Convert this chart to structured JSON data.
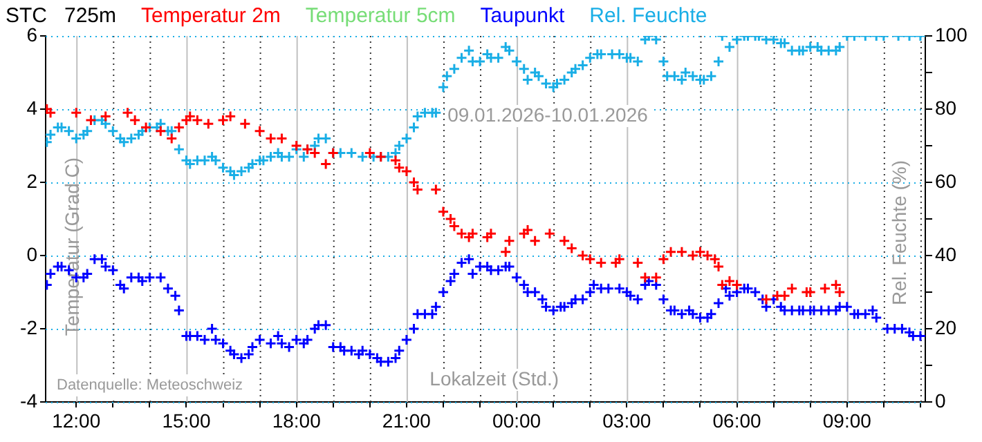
{
  "chart_data": {
    "type": "scatter",
    "title": "STC   725m",
    "xlabel": "Lokalzeit (Std.)",
    "ylabel": "Temperatur (Grad C)",
    "y2label": "Rel. Feuchte (%)",
    "annotations": [
      "09.01.2026-10.01.2026",
      "Datenquelle: Meteoschweiz"
    ],
    "legend": "top",
    "grid": true,
    "marker": "cross",
    "xlim": [
      "2026-01-09T11:10",
      "2026-01-10T11:08"
    ],
    "xticks": [
      {
        "value": "2026-01-09T12:00",
        "label": "12:00"
      },
      {
        "value": "2026-01-09T13:00",
        "label": null
      },
      {
        "value": "2026-01-09T14:00",
        "label": null
      },
      {
        "value": "2026-01-09T15:00",
        "label": "15:00"
      },
      {
        "value": "2026-01-09T16:00",
        "label": null
      },
      {
        "value": "2026-01-09T17:00",
        "label": null
      },
      {
        "value": "2026-01-09T18:00",
        "label": "18:00"
      },
      {
        "value": "2026-01-09T19:00",
        "label": null
      },
      {
        "value": "2026-01-09T20:00",
        "label": null
      },
      {
        "value": "2026-01-09T21:00",
        "label": "21:00"
      },
      {
        "value": "2026-01-09T22:00",
        "label": null
      },
      {
        "value": "2026-01-09T23:00",
        "label": null
      },
      {
        "value": "2026-01-10T00:00",
        "label": "00:00"
      },
      {
        "value": "2026-01-10T01:00",
        "label": null
      },
      {
        "value": "2026-01-10T02:00",
        "label": null
      },
      {
        "value": "2026-01-10T03:00",
        "label": "03:00"
      },
      {
        "value": "2026-01-10T04:00",
        "label": null
      },
      {
        "value": "2026-01-10T05:00",
        "label": null
      },
      {
        "value": "2026-01-10T06:00",
        "label": "06:00"
      },
      {
        "value": "2026-01-10T07:00",
        "label": null
      },
      {
        "value": "2026-01-10T08:00",
        "label": null
      },
      {
        "value": "2026-01-10T09:00",
        "label": "09:00"
      },
      {
        "value": "2026-01-10T10:00",
        "label": null
      },
      {
        "value": "2026-01-10T11:00",
        "label": null
      }
    ],
    "ylim": [
      -4,
      6
    ],
    "yticks": [
      -4,
      -2,
      0,
      2,
      4,
      6
    ],
    "y2lim": [
      0,
      100
    ],
    "y2ticks": [
      0,
      {
        "value": 10,
        "label": null
      },
      20,
      {
        "value": 30,
        "label": null
      },
      40,
      {
        "value": 50,
        "label": null
      },
      60,
      {
        "value": 70,
        "label": null
      },
      80,
      {
        "value": 90,
        "label": null
      },
      100
    ],
    "series": [
      {
        "name": "Temperatur 2m",
        "color": "#ff0000",
        "x": [
          "2026-01-09T11:12",
          "2026-01-09T11:18",
          "2026-01-09T12:00",
          "2026-01-09T12:24",
          "2026-01-09T12:48",
          "2026-01-09T13:24",
          "2026-01-09T13:36",
          "2026-01-09T13:54",
          "2026-01-09T14:18",
          "2026-01-09T14:36",
          "2026-01-09T14:48",
          "2026-01-09T15:00",
          "2026-01-09T15:06",
          "2026-01-09T15:18",
          "2026-01-09T15:36",
          "2026-01-09T16:00",
          "2026-01-09T16:12",
          "2026-01-09T16:36",
          "2026-01-09T17:00",
          "2026-01-09T17:18",
          "2026-01-09T17:36",
          "2026-01-09T18:00",
          "2026-01-09T18:18",
          "2026-01-09T18:30",
          "2026-01-09T18:48",
          "2026-01-09T19:00",
          "2026-01-09T20:00",
          "2026-01-09T20:18",
          "2026-01-09T20:42",
          "2026-01-09T20:48",
          "2026-01-09T21:00",
          "2026-01-09T21:12",
          "2026-01-09T21:18",
          "2026-01-09T21:48",
          "2026-01-09T22:00",
          "2026-01-09T22:12",
          "2026-01-09T22:18",
          "2026-01-09T22:30",
          "2026-01-09T22:42",
          "2026-01-09T22:48",
          "2026-01-09T23:12",
          "2026-01-09T23:18",
          "2026-01-09T23:42",
          "2026-01-09T23:48",
          "2026-01-10T00:12",
          "2026-01-10T00:18",
          "2026-01-10T00:30",
          "2026-01-10T00:54",
          "2026-01-10T01:18",
          "2026-01-10T01:30",
          "2026-01-10T01:48",
          "2026-01-10T02:00",
          "2026-01-10T02:18",
          "2026-01-10T02:42",
          "2026-01-10T02:48",
          "2026-01-10T03:18",
          "2026-01-10T03:30",
          "2026-01-10T03:48",
          "2026-01-10T04:00",
          "2026-01-10T04:12",
          "2026-01-10T04:30",
          "2026-01-10T04:48",
          "2026-01-10T05:00",
          "2026-01-10T05:12",
          "2026-01-10T05:24",
          "2026-01-10T05:30",
          "2026-01-10T05:36",
          "2026-01-10T05:48",
          "2026-01-10T06:00",
          "2026-01-10T06:48",
          "2026-01-10T07:06",
          "2026-01-10T07:18",
          "2026-01-10T07:30",
          "2026-01-10T07:54",
          "2026-01-10T08:00",
          "2026-01-10T08:24",
          "2026-01-10T08:42",
          "2026-01-10T08:48"
        ],
        "values": [
          4.0,
          3.9,
          3.9,
          3.7,
          3.8,
          3.9,
          3.7,
          3.5,
          3.4,
          3.2,
          3.5,
          3.7,
          3.8,
          3.7,
          3.6,
          3.7,
          3.8,
          3.6,
          3.4,
          3.2,
          3.2,
          3.0,
          2.9,
          2.8,
          2.5,
          2.8,
          2.8,
          2.7,
          2.6,
          2.4,
          2.3,
          2.0,
          1.8,
          1.8,
          1.2,
          1.0,
          0.8,
          0.6,
          0.5,
          0.6,
          0.5,
          0.6,
          0.1,
          0.4,
          0.6,
          0.7,
          0.4,
          0.6,
          0.4,
          0.2,
          0.0,
          -0.1,
          -0.2,
          -0.2,
          -0.1,
          -0.2,
          -0.6,
          -0.6,
          -0.1,
          0.1,
          0.1,
          0.0,
          0.1,
          0.0,
          -0.1,
          -0.3,
          -0.8,
          -0.7,
          -0.8,
          -1.2,
          -1.1,
          -1.1,
          -0.9,
          -1.0,
          -1.0,
          -0.9,
          -0.8,
          -1.0
        ]
      },
      {
        "name": "Temperatur 5cm",
        "color": "#77dd77"
      },
      {
        "name": "Taupunkt",
        "color": "#0000ff",
        "x": [
          "2026-01-09T11:12",
          "2026-01-09T11:18",
          "2026-01-09T11:30",
          "2026-01-09T11:36",
          "2026-01-09T11:48",
          "2026-01-09T12:00",
          "2026-01-09T12:12",
          "2026-01-09T12:18",
          "2026-01-09T12:30",
          "2026-01-09T12:42",
          "2026-01-09T12:48",
          "2026-01-09T13:00",
          "2026-01-09T13:12",
          "2026-01-09T13:18",
          "2026-01-09T13:30",
          "2026-01-09T13:42",
          "2026-01-09T13:48",
          "2026-01-09T14:00",
          "2026-01-09T14:18",
          "2026-01-09T14:30",
          "2026-01-09T14:42",
          "2026-01-09T14:48",
          "2026-01-09T15:00",
          "2026-01-09T15:06",
          "2026-01-09T15:18",
          "2026-01-09T15:30",
          "2026-01-09T15:42",
          "2026-01-09T15:48",
          "2026-01-09T16:00",
          "2026-01-09T16:12",
          "2026-01-09T16:18",
          "2026-01-09T16:30",
          "2026-01-09T16:42",
          "2026-01-09T16:48",
          "2026-01-09T17:00",
          "2026-01-09T17:18",
          "2026-01-09T17:30",
          "2026-01-09T17:36",
          "2026-01-09T17:48",
          "2026-01-09T18:00",
          "2026-01-09T18:12",
          "2026-01-09T18:18",
          "2026-01-09T18:30",
          "2026-01-09T18:36",
          "2026-01-09T18:48",
          "2026-01-09T19:00",
          "2026-01-09T19:12",
          "2026-01-09T19:18",
          "2026-01-09T19:30",
          "2026-01-09T19:42",
          "2026-01-09T19:48",
          "2026-01-09T20:00",
          "2026-01-09T20:12",
          "2026-01-09T20:18",
          "2026-01-09T20:30",
          "2026-01-09T20:42",
          "2026-01-09T20:48",
          "2026-01-09T21:00",
          "2026-01-09T21:12",
          "2026-01-09T21:18",
          "2026-01-09T21:30",
          "2026-01-09T21:42",
          "2026-01-09T21:48",
          "2026-01-09T22:00",
          "2026-01-09T22:12",
          "2026-01-09T22:18",
          "2026-01-09T22:30",
          "2026-01-09T22:42",
          "2026-01-09T22:48",
          "2026-01-09T23:00",
          "2026-01-09T23:12",
          "2026-01-09T23:18",
          "2026-01-09T23:30",
          "2026-01-09T23:42",
          "2026-01-09T23:48",
          "2026-01-10T00:00",
          "2026-01-10T00:12",
          "2026-01-10T00:18",
          "2026-01-10T00:30",
          "2026-01-10T00:42",
          "2026-01-10T00:48",
          "2026-01-10T01:00",
          "2026-01-10T01:12",
          "2026-01-10T01:18",
          "2026-01-10T01:30",
          "2026-01-10T01:36",
          "2026-01-10T01:48",
          "2026-01-10T02:00",
          "2026-01-10T02:06",
          "2026-01-10T02:18",
          "2026-01-10T02:30",
          "2026-01-10T02:48",
          "2026-01-10T03:00",
          "2026-01-10T03:06",
          "2026-01-10T03:18",
          "2026-01-10T03:30",
          "2026-01-10T03:36",
          "2026-01-10T03:48",
          "2026-01-10T04:00",
          "2026-01-10T04:12",
          "2026-01-10T04:18",
          "2026-01-10T04:30",
          "2026-01-10T04:42",
          "2026-01-10T04:48",
          "2026-01-10T05:00",
          "2026-01-10T05:12",
          "2026-01-10T05:18",
          "2026-01-10T05:30",
          "2026-01-10T05:42",
          "2026-01-10T05:48",
          "2026-01-10T06:00",
          "2026-01-10T06:12",
          "2026-01-10T06:18",
          "2026-01-10T06:30",
          "2026-01-10T06:42",
          "2026-01-10T06:48",
          "2026-01-10T07:00",
          "2026-01-10T07:12",
          "2026-01-10T07:18",
          "2026-01-10T07:30",
          "2026-01-10T07:42",
          "2026-01-10T07:48",
          "2026-01-10T08:00",
          "2026-01-10T08:06",
          "2026-01-10T08:18",
          "2026-01-10T08:30",
          "2026-01-10T08:42",
          "2026-01-10T08:48",
          "2026-01-10T09:00",
          "2026-01-10T09:12",
          "2026-01-10T09:18",
          "2026-01-10T09:30",
          "2026-01-10T09:42",
          "2026-01-10T09:48",
          "2026-01-10T10:06",
          "2026-01-10T10:18",
          "2026-01-10T10:30",
          "2026-01-10T10:42",
          "2026-01-10T10:48",
          "2026-01-10T11:00"
        ],
        "values": [
          -0.8,
          -0.5,
          -0.3,
          -0.3,
          -0.4,
          -0.6,
          -0.6,
          -0.5,
          -0.1,
          -0.1,
          -0.3,
          -0.4,
          -0.8,
          -0.9,
          -0.6,
          -0.6,
          -0.7,
          -0.6,
          -0.6,
          -0.9,
          -1.1,
          -1.5,
          -2.2,
          -2.2,
          -2.2,
          -2.3,
          -2.0,
          -2.3,
          -2.4,
          -2.6,
          -2.7,
          -2.8,
          -2.7,
          -2.5,
          -2.3,
          -2.4,
          -2.2,
          -2.4,
          -2.5,
          -2.3,
          -2.4,
          -2.3,
          -2.0,
          -1.9,
          -1.9,
          -2.5,
          -2.5,
          -2.6,
          -2.6,
          -2.7,
          -2.6,
          -2.7,
          -2.8,
          -2.9,
          -2.9,
          -2.8,
          -2.6,
          -2.3,
          -2.0,
          -1.6,
          -1.6,
          -1.6,
          -1.4,
          -1.0,
          -0.7,
          -0.5,
          -0.2,
          -0.1,
          -0.5,
          -0.3,
          -0.3,
          -0.4,
          -0.4,
          -0.3,
          -0.3,
          -0.6,
          -0.8,
          -1.0,
          -1.0,
          -1.2,
          -1.4,
          -1.5,
          -1.4,
          -1.4,
          -1.3,
          -1.2,
          -1.2,
          -1.0,
          -0.8,
          -0.9,
          -0.9,
          -0.9,
          -1.0,
          -1.1,
          -1.2,
          -0.8,
          -0.7,
          -0.8,
          -1.2,
          -1.5,
          -1.5,
          -1.6,
          -1.5,
          -1.6,
          -1.7,
          -1.7,
          -1.6,
          -1.3,
          -0.9,
          -1.1,
          -1.0,
          -0.9,
          -0.9,
          -1.0,
          -1.2,
          -1.4,
          -1.2,
          -1.4,
          -1.5,
          -1.5,
          -1.5,
          -1.5,
          -1.5,
          -1.5,
          -1.5,
          -1.5,
          -1.5,
          -1.4,
          -1.4,
          -1.6,
          -1.6,
          -1.6,
          -1.5,
          -1.7,
          -2.0,
          -2.0,
          -2.0,
          -2.1,
          -2.2,
          -2.2
        ]
      },
      {
        "name": "Rel. Feuchte",
        "color": "#19aee6",
        "axis": "y2",
        "x": [
          "2026-01-09T11:12",
          "2026-01-09T11:18",
          "2026-01-09T11:30",
          "2026-01-09T11:36",
          "2026-01-09T11:48",
          "2026-01-09T12:00",
          "2026-01-09T12:12",
          "2026-01-09T12:18",
          "2026-01-09T12:30",
          "2026-01-09T12:42",
          "2026-01-09T12:48",
          "2026-01-09T13:00",
          "2026-01-09T13:12",
          "2026-01-09T13:18",
          "2026-01-09T13:30",
          "2026-01-09T13:42",
          "2026-01-09T13:48",
          "2026-01-09T14:00",
          "2026-01-09T14:12",
          "2026-01-09T14:18",
          "2026-01-09T14:30",
          "2026-01-09T14:36",
          "2026-01-09T14:48",
          "2026-01-09T15:00",
          "2026-01-09T15:06",
          "2026-01-09T15:18",
          "2026-01-09T15:30",
          "2026-01-09T15:42",
          "2026-01-09T15:48",
          "2026-01-09T16:00",
          "2026-01-09T16:12",
          "2026-01-09T16:18",
          "2026-01-09T16:30",
          "2026-01-09T16:42",
          "2026-01-09T16:48",
          "2026-01-09T17:00",
          "2026-01-09T17:06",
          "2026-01-09T17:18",
          "2026-01-09T17:30",
          "2026-01-09T17:36",
          "2026-01-09T17:48",
          "2026-01-09T18:00",
          "2026-01-09T18:12",
          "2026-01-09T18:18",
          "2026-01-09T18:30",
          "2026-01-09T18:36",
          "2026-01-09T18:48",
          "2026-01-09T19:00",
          "2026-01-09T19:12",
          "2026-01-09T19:30",
          "2026-01-09T19:48",
          "2026-01-09T20:06",
          "2026-01-09T20:18",
          "2026-01-09T20:30",
          "2026-01-09T20:42",
          "2026-01-09T20:48",
          "2026-01-09T21:00",
          "2026-01-09T21:12",
          "2026-01-09T21:18",
          "2026-01-09T21:30",
          "2026-01-09T21:42",
          "2026-01-09T21:48",
          "2026-01-09T22:00",
          "2026-01-09T22:06",
          "2026-01-09T22:18",
          "2026-01-09T22:30",
          "2026-01-09T22:42",
          "2026-01-09T22:48",
          "2026-01-09T23:00",
          "2026-01-09T23:12",
          "2026-01-09T23:18",
          "2026-01-09T23:30",
          "2026-01-09T23:42",
          "2026-01-09T23:48",
          "2026-01-10T00:00",
          "2026-01-10T00:12",
          "2026-01-10T00:18",
          "2026-01-10T00:30",
          "2026-01-10T00:36",
          "2026-01-10T00:48",
          "2026-01-10T01:00",
          "2026-01-10T01:06",
          "2026-01-10T01:18",
          "2026-01-10T01:30",
          "2026-01-10T01:36",
          "2026-01-10T01:48",
          "2026-01-10T02:00",
          "2026-01-10T02:12",
          "2026-01-10T02:18",
          "2026-01-10T02:36",
          "2026-01-10T02:48",
          "2026-01-10T03:00",
          "2026-01-10T03:06",
          "2026-01-10T03:18",
          "2026-01-10T03:30",
          "2026-01-10T03:36",
          "2026-01-10T03:48",
          "2026-01-10T04:00",
          "2026-01-10T04:06",
          "2026-01-10T04:18",
          "2026-01-10T04:30",
          "2026-01-10T04:36",
          "2026-01-10T04:48",
          "2026-01-10T05:00",
          "2026-01-10T05:06",
          "2026-01-10T05:18",
          "2026-01-10T05:30",
          "2026-01-10T05:36",
          "2026-01-10T05:48",
          "2026-01-10T06:00",
          "2026-01-10T06:12",
          "2026-01-10T06:18",
          "2026-01-10T06:30",
          "2026-01-10T06:36",
          "2026-01-10T06:48",
          "2026-01-10T07:00",
          "2026-01-10T07:12",
          "2026-01-10T07:18",
          "2026-01-10T07:30",
          "2026-01-10T07:42",
          "2026-01-10T07:48",
          "2026-01-10T08:00",
          "2026-01-10T08:12",
          "2026-01-10T08:18",
          "2026-01-10T08:30",
          "2026-01-10T08:42",
          "2026-01-10T08:48",
          "2026-01-10T09:00",
          "2026-01-10T09:12",
          "2026-01-10T09:30",
          "2026-01-10T09:48",
          "2026-01-10T10:00",
          "2026-01-10T10:24",
          "2026-01-10T10:42",
          "2026-01-10T11:00"
        ],
        "values": [
          71,
          73,
          75,
          75,
          74,
          72,
          73,
          74,
          77,
          77,
          76,
          74,
          72,
          71,
          72,
          73,
          74,
          75,
          75,
          76,
          74,
          74,
          69,
          66,
          65,
          66,
          66,
          67,
          66,
          64,
          63,
          62,
          63,
          64,
          65,
          66,
          66,
          67,
          68,
          67,
          67,
          69,
          67,
          69,
          70,
          72,
          72,
          68,
          68,
          68,
          67,
          67,
          67,
          67,
          68,
          70,
          72,
          75,
          78,
          79,
          79,
          79,
          86,
          89,
          91,
          94,
          96,
          93,
          93,
          95,
          94,
          94,
          97,
          96,
          93,
          91,
          88,
          90,
          89,
          87,
          86,
          87,
          88,
          90,
          91,
          92,
          94,
          95,
          95,
          95,
          95,
          94,
          94,
          93,
          99,
          100,
          99,
          93,
          89,
          89,
          88,
          90,
          89,
          88,
          88,
          89,
          93,
          100,
          97,
          99,
          100,
          100,
          100,
          100,
          99,
          99,
          98,
          98,
          96,
          96,
          96,
          97,
          97,
          96,
          96,
          96,
          97,
          100,
          100,
          100,
          100,
          100,
          100,
          100,
          100
        ]
      }
    ]
  }
}
